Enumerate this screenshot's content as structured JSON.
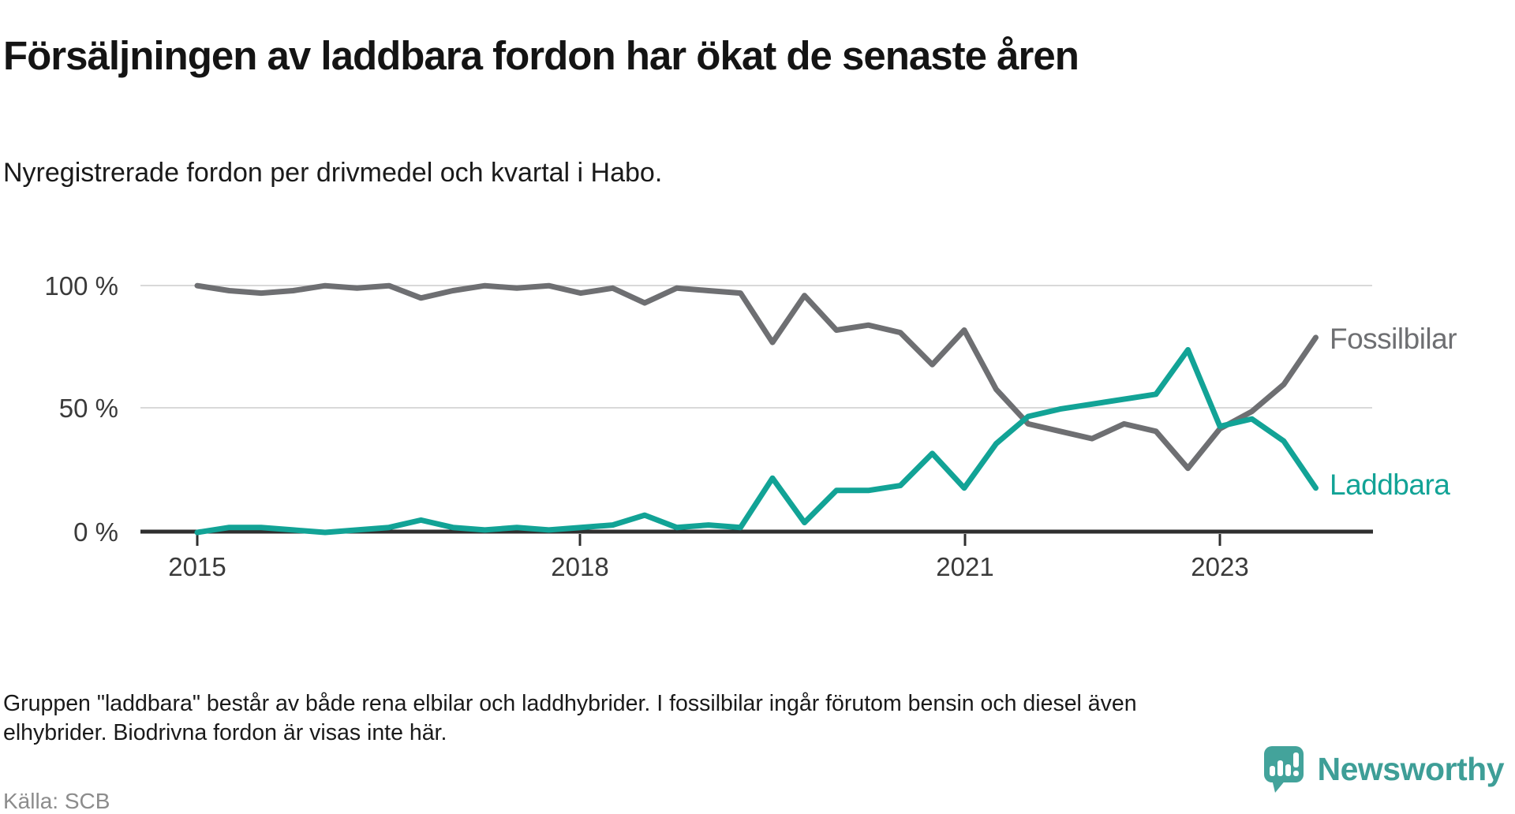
{
  "header": {
    "title": "Försäljningen av laddbara fordon har ökat de senaste åren",
    "subtitle": "Nyregistrerade fordon per drivmedel och kvartal i Habo."
  },
  "chart_data": {
    "type": "line",
    "x": [
      "2015 Q1",
      "2015 Q2",
      "2015 Q3",
      "2015 Q4",
      "2016 Q1",
      "2016 Q2",
      "2016 Q3",
      "2016 Q4",
      "2017 Q1",
      "2017 Q2",
      "2017 Q3",
      "2017 Q4",
      "2018 Q1",
      "2018 Q2",
      "2018 Q3",
      "2018 Q4",
      "2019 Q1",
      "2019 Q2",
      "2019 Q3",
      "2019 Q4",
      "2020 Q1",
      "2020 Q2",
      "2020 Q3",
      "2020 Q4",
      "2021 Q1",
      "2021 Q2",
      "2021 Q3",
      "2021 Q4",
      "2022 Q1",
      "2022 Q2",
      "2022 Q3",
      "2022 Q4",
      "2023 Q1",
      "2023 Q2",
      "2023 Q3",
      "2023 Q4"
    ],
    "series": [
      {
        "name": "Fossilbilar",
        "color": "#6e6f72",
        "values": [
          100,
          98,
          97,
          98,
          100,
          99,
          100,
          95,
          98,
          100,
          99,
          100,
          97,
          99,
          93,
          99,
          98,
          97,
          77,
          96,
          82,
          84,
          81,
          68,
          82,
          58,
          44,
          41,
          38,
          44,
          41,
          26,
          42,
          49,
          60,
          79
        ]
      },
      {
        "name": "Laddbara",
        "color": "#12a396",
        "values": [
          0,
          2,
          2,
          1,
          0,
          1,
          2,
          5,
          2,
          1,
          2,
          1,
          2,
          3,
          7,
          2,
          3,
          2,
          22,
          4,
          17,
          17,
          19,
          32,
          18,
          36,
          47,
          50,
          52,
          54,
          56,
          74,
          43,
          46,
          37,
          18
        ]
      }
    ],
    "y_ticks": [
      "100 %",
      "50 %",
      "0 %"
    ],
    "x_ticks": [
      "2015",
      "2018",
      "2021",
      "2023"
    ],
    "ylabel": "",
    "xlabel": "",
    "ylim": [
      0,
      100
    ],
    "unit": "%",
    "grid": "horizontal",
    "legend_position": "right-of-line-ends"
  },
  "footnote": "Gruppen \"laddbara\" består av både rena elbilar och laddhybrider. I fossilbilar ingår förutom bensin och diesel även elhybrider. Biodrivna fordon är visas inte här.",
  "source": "Källa: SCB",
  "brand": {
    "name": "Newsworthy",
    "logo_icon": "bar-chart-speech-bubble",
    "logo_color": "#43a39b",
    "wordmark_color": "#3e9e97"
  }
}
